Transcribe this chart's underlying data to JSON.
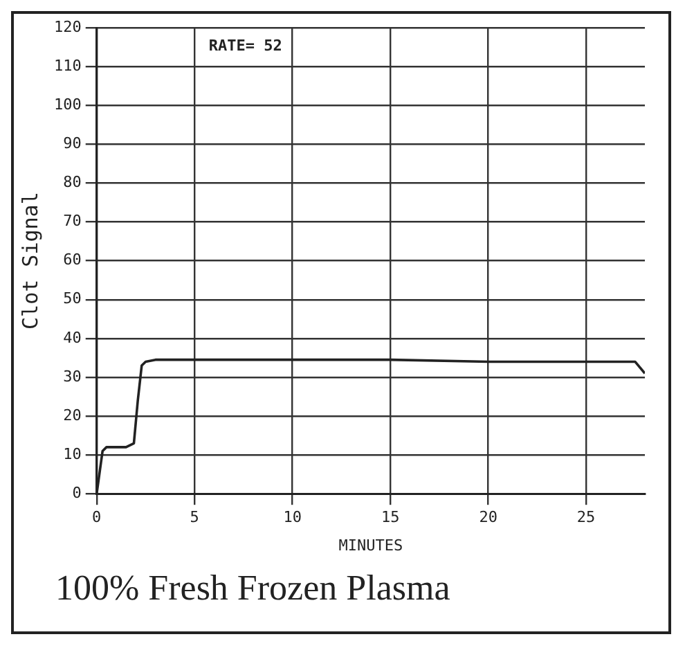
{
  "chart_data": {
    "type": "line",
    "title": "100% Fresh Frozen Plasma",
    "xlabel": "MINUTES",
    "ylabel": "Clot Signal",
    "annotations": [
      "RATE= 52"
    ],
    "x": [
      0,
      0.3,
      0.5,
      1.0,
      1.5,
      1.9,
      2.1,
      2.3,
      2.5,
      3,
      5,
      8,
      10,
      15,
      20,
      25,
      27.5,
      28
    ],
    "series": [
      {
        "color": "#222222",
        "values": [
          0,
          11,
          12,
          12,
          12,
          13,
          24,
          33,
          34,
          34.5,
          34.5,
          34.5,
          34.5,
          34.5,
          34,
          34,
          34,
          31
        ]
      }
    ],
    "xlim": [
      0,
      28
    ],
    "xticks": [
      0,
      5,
      10,
      15,
      20,
      25
    ],
    "ylim": [
      0,
      120
    ],
    "yticks": [
      0,
      10,
      20,
      30,
      40,
      50,
      60,
      70,
      80,
      90,
      100,
      110,
      120
    ],
    "grid": true,
    "legend": false,
    "marker": "none",
    "line_style": "solid"
  }
}
